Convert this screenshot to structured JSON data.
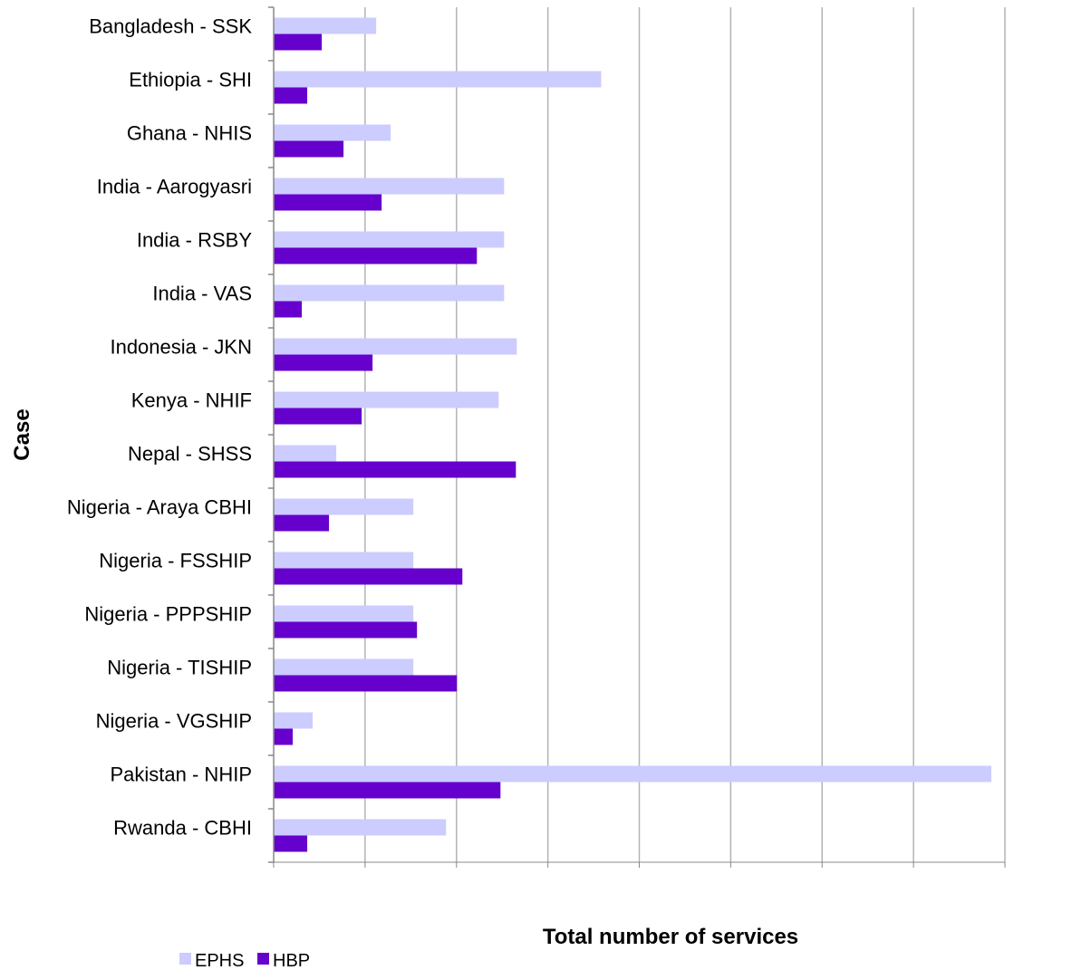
{
  "chart_data": {
    "type": "bar",
    "orientation": "horizontal",
    "title": "",
    "xlabel": "Total number of services",
    "ylabel": "Case",
    "categories": [
      "Bangladesh - SSK",
      "Ethiopia - SHI",
      "Ghana - NHIS",
      "India - Aarogyasri",
      "India - RSBY",
      "India - VAS",
      "Indonesia - JKN",
      "Kenya - NHIF",
      "Nepal - SHSS",
      "Nigeria - Araya CBHI",
      "Nigeria - FSSHIP",
      "Nigeria - PPPSHIP",
      "Nigeria - TISHIP",
      "Nigeria - VGSHIP",
      "Pakistan - NHIP",
      "Rwanda - CBHI"
    ],
    "series": [
      {
        "name": "EPHS",
        "color": "#ccccff",
        "values": [
          113,
          361,
          129,
          254,
          254,
          254,
          268,
          248,
          69,
          154,
          154,
          154,
          154,
          43,
          791,
          190
        ]
      },
      {
        "name": "HBP",
        "color": "#6600cc",
        "values": [
          53,
          37,
          77,
          119,
          224,
          31,
          109,
          97,
          267,
          61,
          208,
          158,
          202,
          21,
          250,
          37
        ]
      }
    ],
    "xlim": [
      0,
      806
    ],
    "x_gridlines": 8,
    "grid": true,
    "legend_position": "bottom-left"
  }
}
